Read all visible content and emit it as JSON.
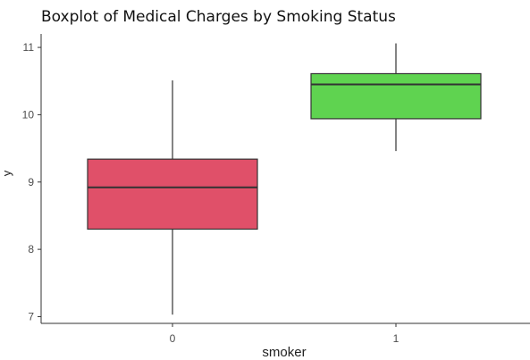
{
  "chart_data": {
    "type": "boxplot",
    "title": "Boxplot of Medical Charges by Smoking Status",
    "xlabel": "smoker",
    "ylabel": "y",
    "categories": [
      "0",
      "1"
    ],
    "boxes": [
      {
        "category": "0",
        "whisker_low": 7.03,
        "q1": 8.3,
        "median": 8.92,
        "q3": 9.34,
        "whisker_high": 10.51,
        "fill": "#e05069"
      },
      {
        "category": "1",
        "whisker_low": 9.46,
        "q1": 9.94,
        "median": 10.45,
        "q3": 10.61,
        "whisker_high": 11.06,
        "fill": "#5fd350"
      }
    ],
    "ylim": [
      6.9,
      11.2
    ],
    "yticks": [
      7,
      8,
      9,
      10,
      11
    ],
    "grid": false,
    "colors": {
      "axis": "#333333",
      "tick_label": "#4d4d4d",
      "box_border": "#333333"
    }
  }
}
